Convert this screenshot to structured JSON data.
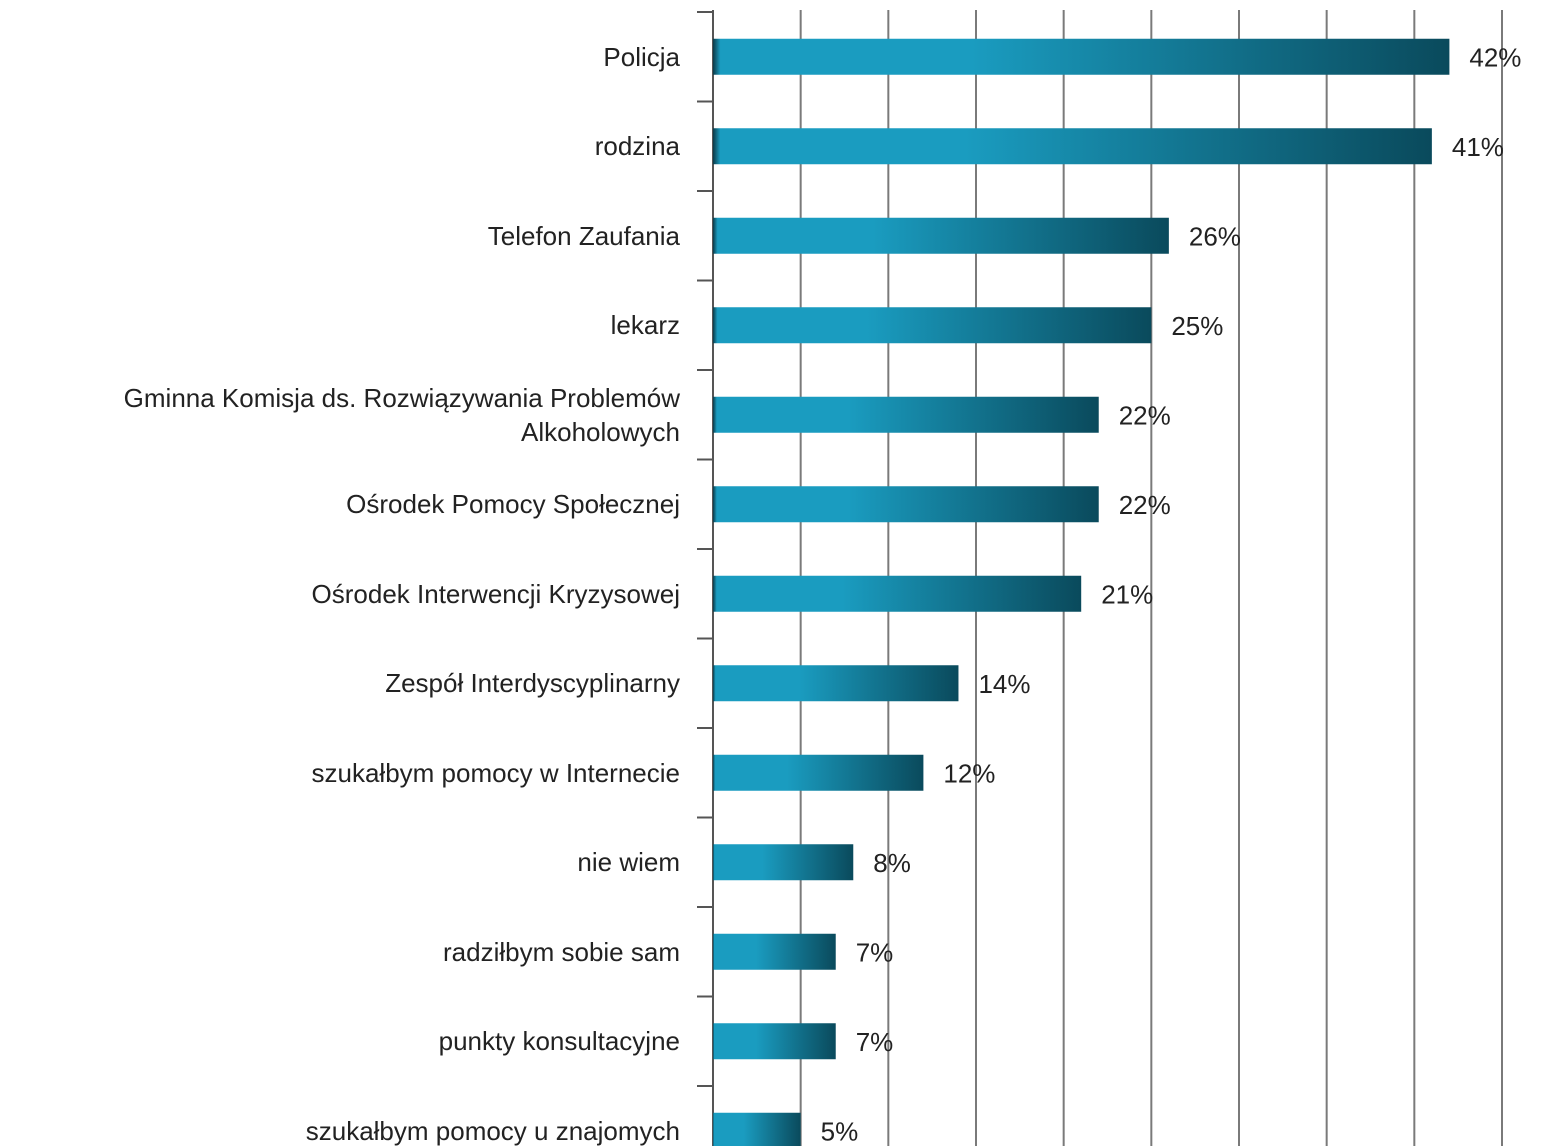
{
  "chart_data": {
    "type": "bar",
    "orientation": "horizontal",
    "categories": [
      "Policja",
      "rodzina",
      "Telefon Zaufania",
      "lekarz",
      "Gminna Komisja ds. Rozwiązywania Problemów Alkoholowych",
      "Ośrodek Pomocy Społecznej",
      "Ośrodek Interwencji Kryzysowej",
      "Zespół Interdyscyplinarny",
      "szukałbym pomocy w Internecie",
      "nie wiem",
      "radziłbym sobie sam",
      "punkty konsultacyjne",
      "szukałbym pomocy u znajomych"
    ],
    "values": [
      42,
      41,
      26,
      25,
      22,
      22,
      21,
      14,
      12,
      8,
      7,
      7,
      5
    ],
    "value_labels": [
      "42%",
      "41%",
      "26%",
      "25%",
      "22%",
      "22%",
      "21%",
      "14%",
      "12%",
      "8%",
      "7%",
      "7%",
      "5%"
    ],
    "color": "#1a9cc0",
    "xlim": [
      0,
      45
    ],
    "xticks": [
      0,
      5,
      10,
      15,
      20,
      25,
      30,
      35,
      40,
      45
    ],
    "grid": true
  }
}
